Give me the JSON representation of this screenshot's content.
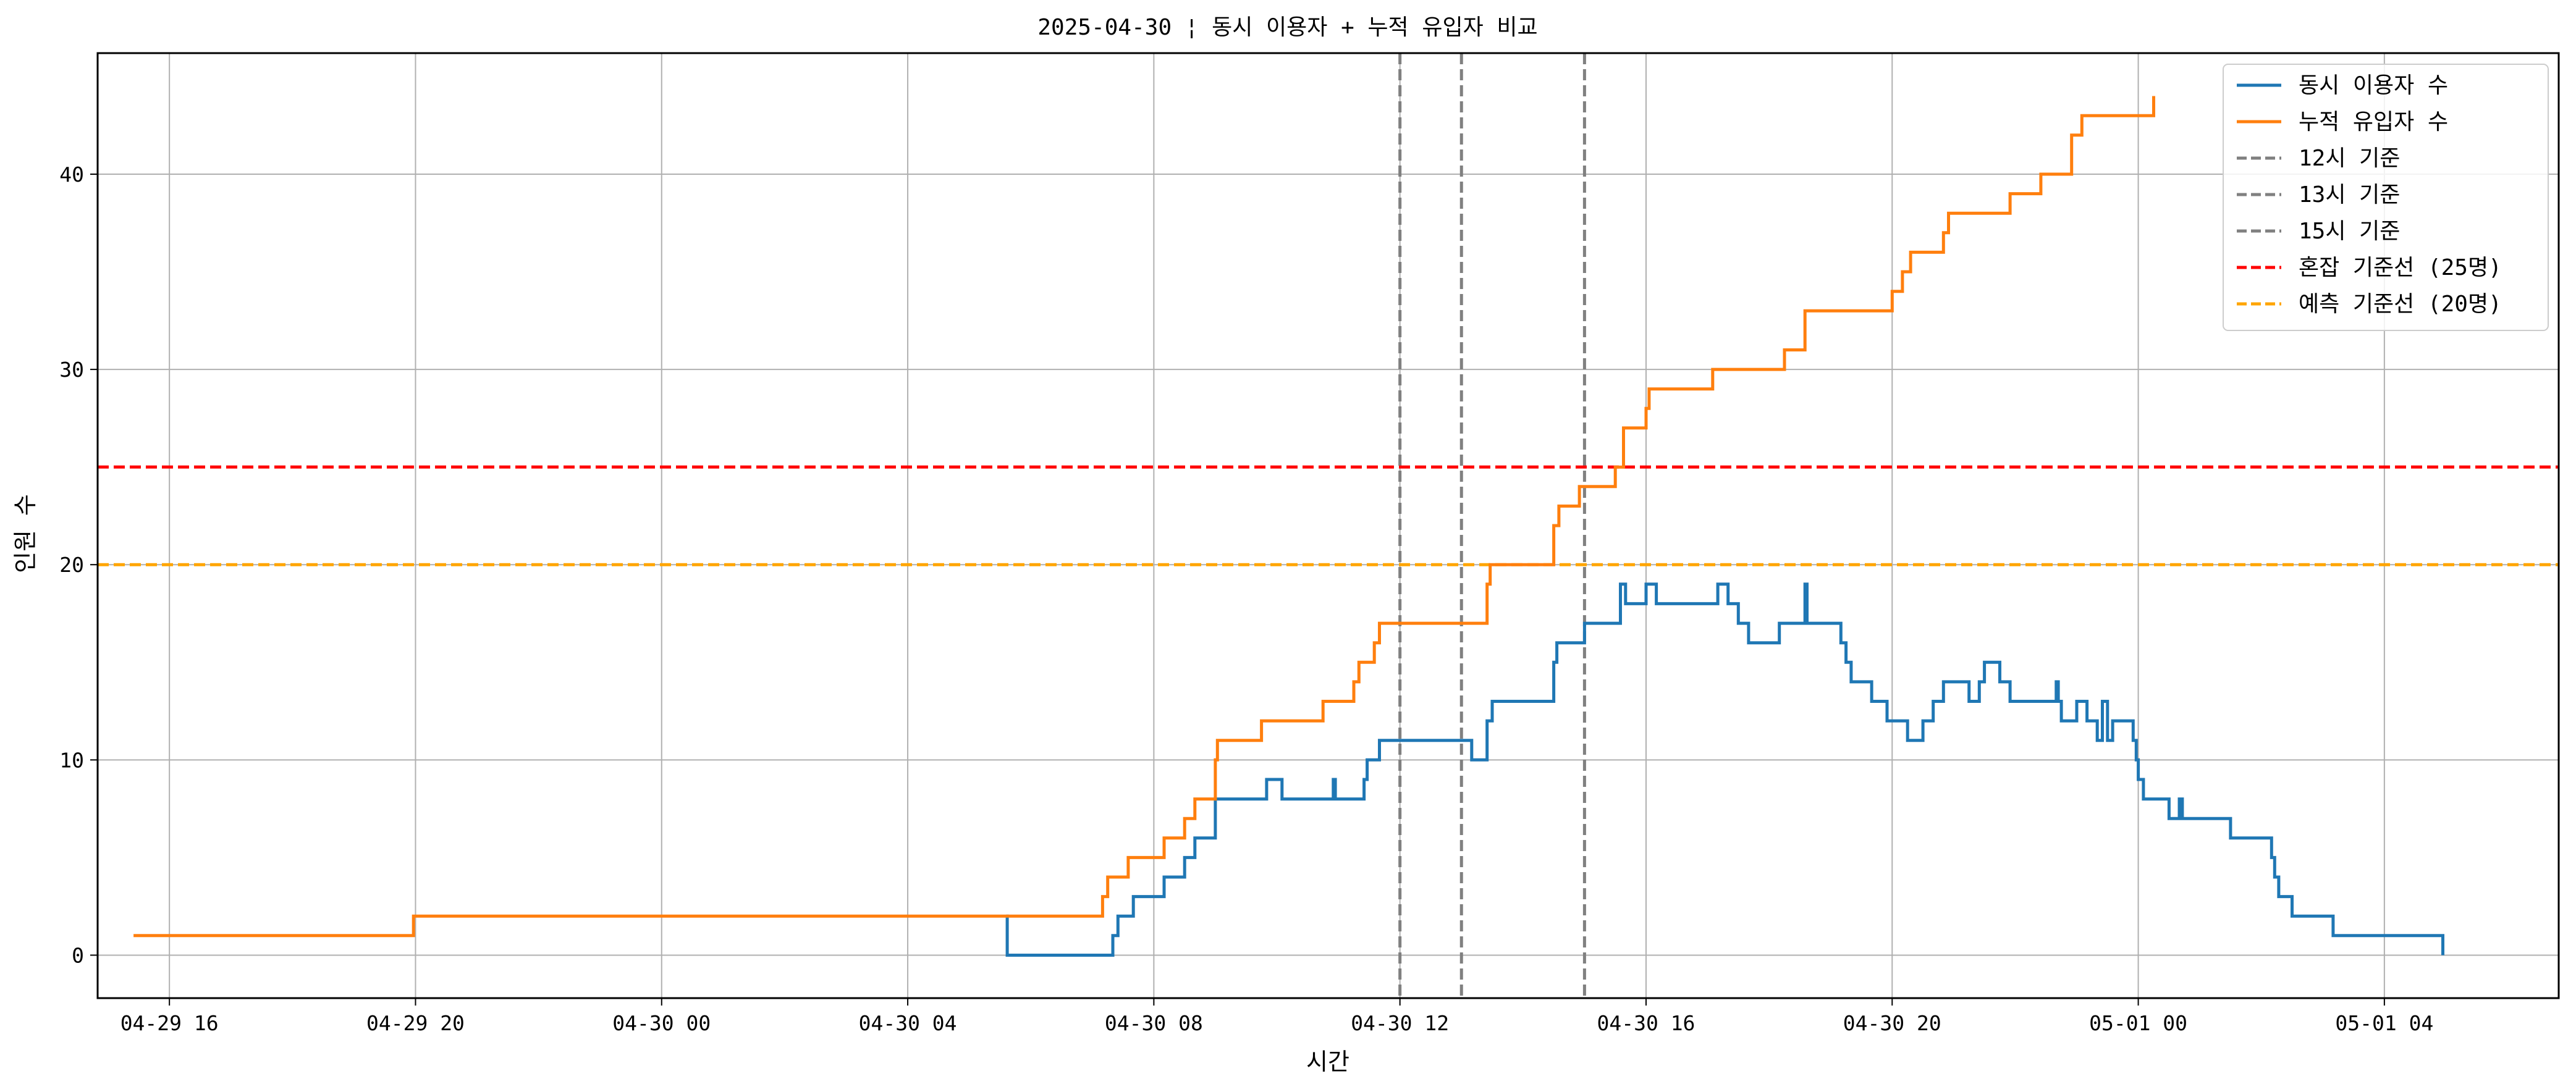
{
  "chart_data": {
    "type": "line",
    "title": "2025-04-30 ¦ 동시 이용자 + 누적 유입자 비교",
    "xlabel": "시간",
    "ylabel": "인원 수",
    "xlim": [
      "2025-04-29 14:50",
      "2025-05-01 06:50"
    ],
    "ylim": [
      -2.2,
      46.2
    ],
    "grid": true,
    "legend_position": "top-right",
    "x_ticks": [
      {
        "label": "04-29 16",
        "value": "2025-04-29 16:00"
      },
      {
        "label": "04-29 20",
        "value": "2025-04-29 20:00"
      },
      {
        "label": "04-30 00",
        "value": "2025-04-30 00:00"
      },
      {
        "label": "04-30 04",
        "value": "2025-04-30 04:00"
      },
      {
        "label": "04-30 08",
        "value": "2025-04-30 08:00"
      },
      {
        "label": "04-30 12",
        "value": "2025-04-30 12:00"
      },
      {
        "label": "04-30 16",
        "value": "2025-04-30 16:00"
      },
      {
        "label": "04-30 20",
        "value": "2025-04-30 20:00"
      },
      {
        "label": "05-01 00",
        "value": "2025-05-01 00:00"
      },
      {
        "label": "05-01 04",
        "value": "2025-05-01 04:00"
      }
    ],
    "y_ticks": [
      0,
      10,
      20,
      30,
      40
    ],
    "series": [
      {
        "name": "동시 이용자 수",
        "color": "#1f77b4",
        "style": "step",
        "points": [
          [
            "2025-04-30 05:36",
            2
          ],
          [
            "2025-04-30 05:37",
            0
          ],
          [
            "2025-04-30 07:20",
            1
          ],
          [
            "2025-04-30 07:25",
            2
          ],
          [
            "2025-04-30 07:40",
            3
          ],
          [
            "2025-04-30 08:10",
            4
          ],
          [
            "2025-04-30 08:30",
            5
          ],
          [
            "2025-04-30 08:40",
            6
          ],
          [
            "2025-04-30 09:00",
            8
          ],
          [
            "2025-04-30 09:50",
            9
          ],
          [
            "2025-04-30 10:05",
            8
          ],
          [
            "2025-04-30 10:55",
            9
          ],
          [
            "2025-04-30 10:57",
            8
          ],
          [
            "2025-04-30 11:25",
            9
          ],
          [
            "2025-04-30 11:28",
            10
          ],
          [
            "2025-04-30 11:40",
            11
          ],
          [
            "2025-04-30 13:10",
            10
          ],
          [
            "2025-04-30 13:25",
            12
          ],
          [
            "2025-04-30 13:30",
            13
          ],
          [
            "2025-04-30 14:30",
            15
          ],
          [
            "2025-04-30 14:33",
            16
          ],
          [
            "2025-04-30 15:00",
            17
          ],
          [
            "2025-04-30 15:30",
            17
          ],
          [
            "2025-04-30 15:35",
            19
          ],
          [
            "2025-04-30 15:40",
            18
          ],
          [
            "2025-04-30 16:00",
            19
          ],
          [
            "2025-04-30 16:10",
            18
          ],
          [
            "2025-04-30 17:10",
            19
          ],
          [
            "2025-04-30 17:20",
            18
          ],
          [
            "2025-04-30 17:30",
            17
          ],
          [
            "2025-04-30 17:40",
            16
          ],
          [
            "2025-04-30 18:10",
            17
          ],
          [
            "2025-04-30 18:35",
            19
          ],
          [
            "2025-04-30 18:37",
            17
          ],
          [
            "2025-04-30 19:10",
            16
          ],
          [
            "2025-04-30 19:15",
            15
          ],
          [
            "2025-04-30 19:20",
            14
          ],
          [
            "2025-04-30 19:40",
            13
          ],
          [
            "2025-04-30 19:55",
            12
          ],
          [
            "2025-04-30 20:15",
            11
          ],
          [
            "2025-04-30 20:30",
            12
          ],
          [
            "2025-04-30 20:40",
            13
          ],
          [
            "2025-04-30 20:50",
            14
          ],
          [
            "2025-04-30 21:15",
            13
          ],
          [
            "2025-04-30 21:25",
            14
          ],
          [
            "2025-04-30 21:30",
            15
          ],
          [
            "2025-04-30 21:45",
            14
          ],
          [
            "2025-04-30 21:55",
            13
          ],
          [
            "2025-04-30 22:40",
            14
          ],
          [
            "2025-04-30 22:42",
            13
          ],
          [
            "2025-04-30 22:45",
            12
          ],
          [
            "2025-04-30 23:00",
            13
          ],
          [
            "2025-04-30 23:10",
            12
          ],
          [
            "2025-04-30 23:20",
            11
          ],
          [
            "2025-04-30 23:25",
            13
          ],
          [
            "2025-04-30 23:30",
            11
          ],
          [
            "2025-04-30 23:35",
            12
          ],
          [
            "2025-04-30 23:55",
            11
          ],
          [
            "2025-04-30 23:58",
            10
          ],
          [
            "2025-05-01 00:00",
            9
          ],
          [
            "2025-05-01 00:05",
            8
          ],
          [
            "2025-05-01 00:30",
            7
          ],
          [
            "2025-05-01 00:40",
            8
          ],
          [
            "2025-05-01 00:43",
            7
          ],
          [
            "2025-05-01 01:30",
            6
          ],
          [
            "2025-05-01 02:10",
            5
          ],
          [
            "2025-05-01 02:13",
            4
          ],
          [
            "2025-05-01 02:17",
            3
          ],
          [
            "2025-05-01 02:30",
            2
          ],
          [
            "2025-05-01 03:10",
            1
          ],
          [
            "2025-05-01 04:56",
            1
          ],
          [
            "2025-05-01 04:57",
            0
          ]
        ]
      },
      {
        "name": "누적 유입자 수",
        "color": "#ff7f0e",
        "style": "step",
        "points": [
          [
            "2025-04-29 15:25",
            1
          ],
          [
            "2025-04-29 19:58",
            2
          ],
          [
            "2025-04-30 07:10",
            3
          ],
          [
            "2025-04-30 07:15",
            4
          ],
          [
            "2025-04-30 07:35",
            5
          ],
          [
            "2025-04-30 08:10",
            6
          ],
          [
            "2025-04-30 08:30",
            7
          ],
          [
            "2025-04-30 08:40",
            8
          ],
          [
            "2025-04-30 09:00",
            10
          ],
          [
            "2025-04-30 09:02",
            11
          ],
          [
            "2025-04-30 09:45",
            12
          ],
          [
            "2025-04-30 10:45",
            13
          ],
          [
            "2025-04-30 11:15",
            14
          ],
          [
            "2025-04-30 11:20",
            15
          ],
          [
            "2025-04-30 11:35",
            16
          ],
          [
            "2025-04-30 11:40",
            17
          ],
          [
            "2025-04-30 13:25",
            19
          ],
          [
            "2025-04-30 13:28",
            20
          ],
          [
            "2025-04-30 14:30",
            22
          ],
          [
            "2025-04-30 14:35",
            23
          ],
          [
            "2025-04-30 14:55",
            24
          ],
          [
            "2025-04-30 15:30",
            25
          ],
          [
            "2025-04-30 15:38",
            27
          ],
          [
            "2025-04-30 16:00",
            28
          ],
          [
            "2025-04-30 16:03",
            29
          ],
          [
            "2025-04-30 17:05",
            30
          ],
          [
            "2025-04-30 18:15",
            31
          ],
          [
            "2025-04-30 18:35",
            33
          ],
          [
            "2025-04-30 20:00",
            34
          ],
          [
            "2025-04-30 20:10",
            35
          ],
          [
            "2025-04-30 20:18",
            36
          ],
          [
            "2025-04-30 20:50",
            37
          ],
          [
            "2025-04-30 20:55",
            38
          ],
          [
            "2025-04-30 21:55",
            39
          ],
          [
            "2025-04-30 22:25",
            40
          ],
          [
            "2025-04-30 22:55",
            42
          ],
          [
            "2025-04-30 23:05",
            43
          ],
          [
            "2025-05-01 00:15",
            44
          ]
        ]
      }
    ],
    "vertical_lines": [
      {
        "name": "12시 기준",
        "x": "2025-04-30 12:00",
        "color": "#808080",
        "dash": true
      },
      {
        "name": "13시 기준",
        "x": "2025-04-30 13:00",
        "color": "#808080",
        "dash": true
      },
      {
        "name": "15시 기준",
        "x": "2025-04-30 15:00",
        "color": "#808080",
        "dash": true
      }
    ],
    "horizontal_lines": [
      {
        "name": "혼잡 기준선 (25명)",
        "y": 25,
        "color": "#ff0000",
        "dash": true
      },
      {
        "name": "예측 기준선 (20명)",
        "y": 20,
        "color": "#ffa500",
        "dash": true
      }
    ]
  }
}
